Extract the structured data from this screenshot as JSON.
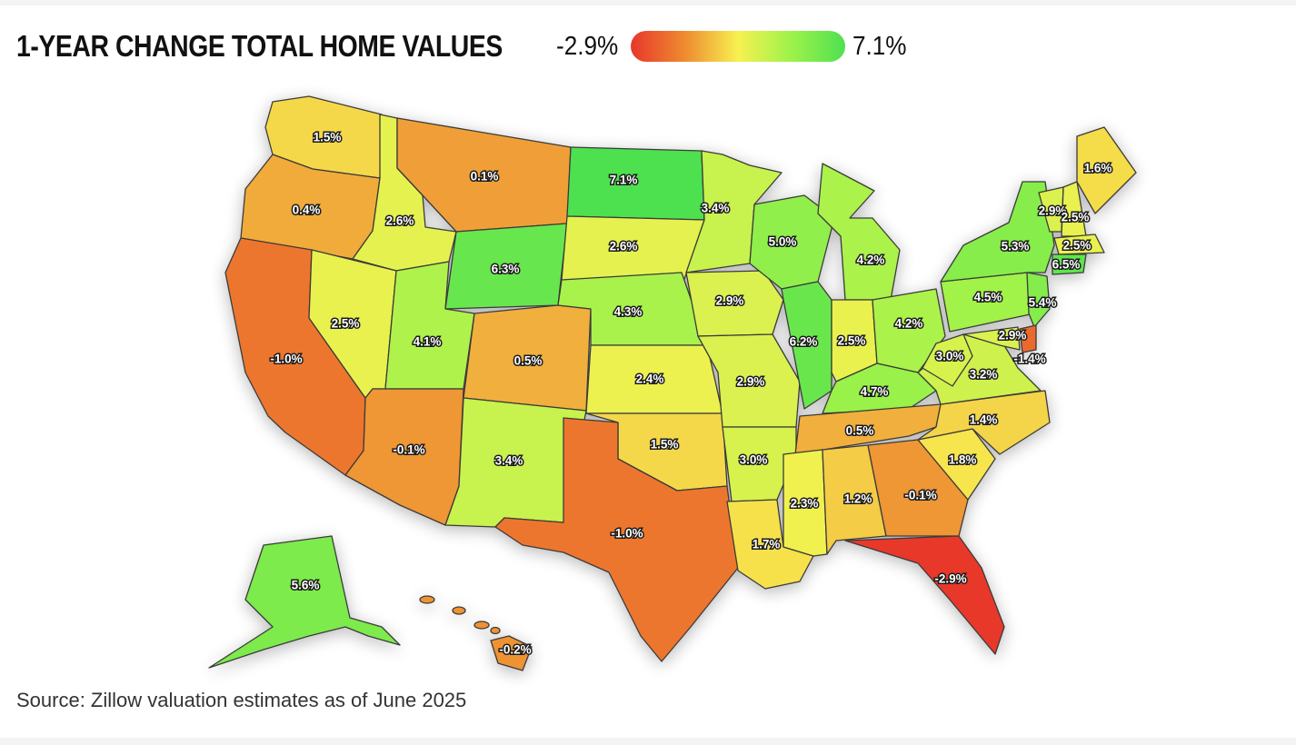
{
  "title": "1-YEAR CHANGE TOTAL HOME VALUES",
  "legend": {
    "min_label": "-2.9%",
    "max_label": "7.1%",
    "min": -2.9,
    "max": 7.1,
    "colors": [
      "#e8372b",
      "#ee8a30",
      "#f7f151",
      "#9df24a",
      "#4ee050"
    ]
  },
  "source": "Source: Zillow valuation estimates as of June 2025",
  "states": [
    {
      "id": "WA",
      "label": "1.5%",
      "value": 1.5
    },
    {
      "id": "OR",
      "label": "0.4%",
      "value": 0.4
    },
    {
      "id": "CA",
      "label": "-1.0%",
      "value": -1.0
    },
    {
      "id": "ID",
      "label": "2.6%",
      "value": 2.6
    },
    {
      "id": "NV",
      "label": "2.5%",
      "value": 2.5
    },
    {
      "id": "MT",
      "label": "0.1%",
      "value": 0.1
    },
    {
      "id": "WY",
      "label": "6.3%",
      "value": 6.3
    },
    {
      "id": "UT",
      "label": "4.1%",
      "value": 4.1
    },
    {
      "id": "AZ",
      "label": "-0.1%",
      "value": -0.1
    },
    {
      "id": "CO",
      "label": "0.5%",
      "value": 0.5
    },
    {
      "id": "NM",
      "label": "3.4%",
      "value": 3.4
    },
    {
      "id": "ND",
      "label": "7.1%",
      "value": 7.1
    },
    {
      "id": "SD",
      "label": "2.6%",
      "value": 2.6
    },
    {
      "id": "NE",
      "label": "4.3%",
      "value": 4.3
    },
    {
      "id": "KS",
      "label": "2.4%",
      "value": 2.4
    },
    {
      "id": "OK",
      "label": "1.5%",
      "value": 1.5
    },
    {
      "id": "TX",
      "label": "-1.0%",
      "value": -1.0
    },
    {
      "id": "MN",
      "label": "3.4%",
      "value": 3.4
    },
    {
      "id": "IA",
      "label": "2.9%",
      "value": 2.9
    },
    {
      "id": "MO",
      "label": "2.9%",
      "value": 2.9
    },
    {
      "id": "AR",
      "label": "3.0%",
      "value": 3.0
    },
    {
      "id": "LA",
      "label": "1.7%",
      "value": 1.7
    },
    {
      "id": "WI",
      "label": "5.0%",
      "value": 5.0
    },
    {
      "id": "IL",
      "label": "6.2%",
      "value": 6.2
    },
    {
      "id": "MI",
      "label": "4.2%",
      "value": 4.2
    },
    {
      "id": "IN",
      "label": "2.5%",
      "value": 2.5
    },
    {
      "id": "OH",
      "label": "4.2%",
      "value": 4.2
    },
    {
      "id": "KY",
      "label": "4.7%",
      "value": 4.7
    },
    {
      "id": "TN",
      "label": "0.5%",
      "value": 0.5
    },
    {
      "id": "MS",
      "label": "2.3%",
      "value": 2.3
    },
    {
      "id": "AL",
      "label": "1.2%",
      "value": 1.2
    },
    {
      "id": "GA",
      "label": "-0.1%",
      "value": -0.1
    },
    {
      "id": "FL",
      "label": "-2.9%",
      "value": -2.9
    },
    {
      "id": "SC",
      "label": "1.8%",
      "value": 1.8
    },
    {
      "id": "NC",
      "label": "1.4%",
      "value": 1.4
    },
    {
      "id": "VA",
      "label": "3.2%",
      "value": 3.2
    },
    {
      "id": "WV",
      "label": "3.0%",
      "value": 3.0
    },
    {
      "id": "PA",
      "label": "4.5%",
      "value": 4.5
    },
    {
      "id": "NY",
      "label": "5.3%",
      "value": 5.3
    },
    {
      "id": "VT",
      "label": "2.9%",
      "value": 2.9
    },
    {
      "id": "NH",
      "label": "2.5%",
      "value": 2.5
    },
    {
      "id": "ME",
      "label": "1.6%",
      "value": 1.6
    },
    {
      "id": "MA",
      "label": "2.5%",
      "value": 2.5
    },
    {
      "id": "CT",
      "label": "6.5%",
      "value": 6.5
    },
    {
      "id": "NJ",
      "label": "5.4%",
      "value": 5.4
    },
    {
      "id": "MD",
      "label": "2.9%",
      "value": 2.9
    },
    {
      "id": "DE",
      "label": "-1.4%",
      "value": -1.4
    },
    {
      "id": "AK",
      "label": "5.6%",
      "value": 5.6
    },
    {
      "id": "HI",
      "label": "-0.2%",
      "value": -0.2
    }
  ]
}
